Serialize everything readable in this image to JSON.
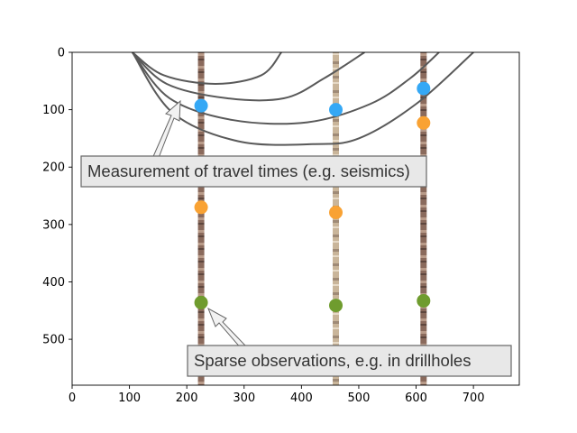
{
  "chart_data": {
    "type": "scatter",
    "xlim": [
      0,
      780
    ],
    "ylim": [
      580,
      0
    ],
    "y_inverted": true,
    "grid": false,
    "xticks": [
      0,
      100,
      200,
      300,
      400,
      500,
      600,
      700
    ],
    "yticks": [
      0,
      100,
      200,
      300,
      400,
      500
    ],
    "xtick_labels": [
      "0",
      "100",
      "200",
      "300",
      "400",
      "500",
      "600",
      "700"
    ],
    "ytick_labels": [
      "0",
      "100",
      "200",
      "300",
      "400",
      "500"
    ],
    "drillholes_x": [
      225,
      460,
      613
    ],
    "series": [
      {
        "color": "#35a8f5",
        "points": [
          [
            225,
            93
          ],
          [
            460,
            100
          ],
          [
            613,
            63
          ]
        ]
      },
      {
        "color": "#f9a233",
        "points": [
          [
            225,
            270
          ],
          [
            460,
            279
          ],
          [
            613,
            123
          ]
        ]
      },
      {
        "color": "#6f9c2e",
        "points": [
          [
            225,
            436
          ],
          [
            460,
            441
          ],
          [
            613,
            433
          ]
        ]
      }
    ],
    "ray_paths": [
      [
        [
          105,
          0
        ],
        [
          160,
          40
        ],
        [
          250,
          55
        ],
        [
          330,
          40
        ],
        [
          365,
          0
        ]
      ],
      [
        [
          105,
          0
        ],
        [
          165,
          55
        ],
        [
          270,
          80
        ],
        [
          370,
          80
        ],
        [
          440,
          45
        ],
        [
          510,
          0
        ]
      ],
      [
        [
          105,
          0
        ],
        [
          170,
          80
        ],
        [
          280,
          118
        ],
        [
          410,
          122
        ],
        [
          520,
          90
        ],
        [
          590,
          45
        ],
        [
          640,
          0
        ]
      ],
      [
        [
          105,
          0
        ],
        [
          175,
          105
        ],
        [
          290,
          155
        ],
        [
          420,
          160
        ],
        [
          500,
          150
        ],
        [
          600,
          90
        ],
        [
          700,
          0
        ]
      ]
    ],
    "annotations": [
      {
        "text": "Measurement of travel times (e.g. seismics)",
        "arrow_target": [
          198,
          90
        ]
      },
      {
        "text": "Sparse observations, e.g. in drillholes",
        "arrow_target": [
          235,
          444
        ]
      }
    ]
  },
  "colors": {
    "ray": "#595959",
    "callout_fill": "#e8e8e8",
    "callout_border": "#666666",
    "drillhole": "#8a6a5c"
  }
}
